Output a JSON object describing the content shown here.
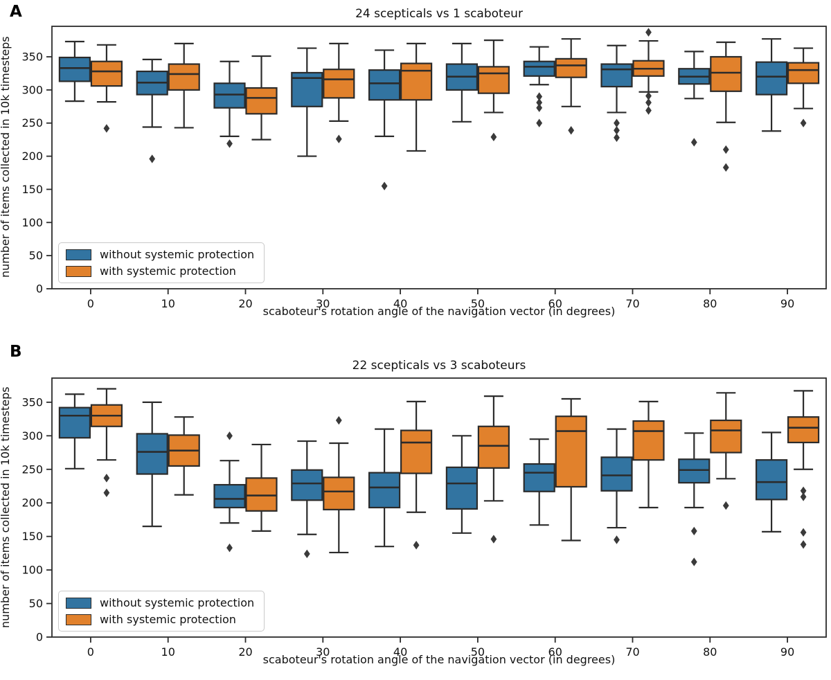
{
  "figure": {
    "panels": [
      {
        "panel_label": "A"
      },
      {
        "panel_label": "B"
      }
    ]
  },
  "colors": {
    "box_blue": "#3274a1",
    "box_orange": "#e1812c",
    "edge": "#2b2b2b",
    "flier": "#3a3a3a",
    "text": "#111111"
  },
  "chart_data": [
    {
      "type": "boxplot",
      "panel": "A",
      "title": "24 scepticals vs 1 scaboteur",
      "xlabel": "scaboteur's rotation angle of the navigation vector (in degrees)",
      "ylabel": "number of items collected in 10k timesteps",
      "categories": [
        0,
        10,
        20,
        30,
        40,
        50,
        60,
        70,
        80,
        90
      ],
      "yticks": [
        0,
        50,
        100,
        150,
        200,
        250,
        300,
        350
      ],
      "ylim": [
        0,
        396
      ],
      "grid": false,
      "legend_position": "lower left",
      "series": [
        {
          "name": "without systemic protection",
          "color": "#3274a1",
          "boxes": [
            {
              "whislo": 283,
              "q1": 313,
              "med": 333,
              "q3": 349,
              "whishi": 373,
              "fliers": []
            },
            {
              "whislo": 244,
              "q1": 293,
              "med": 311,
              "q3": 328,
              "whishi": 346,
              "fliers": [
                196
              ]
            },
            {
              "whislo": 230,
              "q1": 273,
              "med": 293,
              "q3": 310,
              "whishi": 343,
              "fliers": [
                219
              ]
            },
            {
              "whislo": 200,
              "q1": 275,
              "med": 318,
              "q3": 326,
              "whishi": 363,
              "fliers": []
            },
            {
              "whislo": 230,
              "q1": 285,
              "med": 310,
              "q3": 330,
              "whishi": 360,
              "fliers": [
                155
              ]
            },
            {
              "whislo": 252,
              "q1": 300,
              "med": 320,
              "q3": 339,
              "whishi": 370,
              "fliers": []
            },
            {
              "whislo": 308,
              "q1": 321,
              "med": 335,
              "q3": 343,
              "whishi": 365,
              "fliers": [
                290,
                281,
                273,
                250
              ]
            },
            {
              "whislo": 266,
              "q1": 305,
              "med": 331,
              "q3": 339,
              "whishi": 367,
              "fliers": [
                250,
                239,
                228
              ]
            },
            {
              "whislo": 287,
              "q1": 309,
              "med": 320,
              "q3": 332,
              "whishi": 358,
              "fliers": [
                221
              ]
            },
            {
              "whislo": 238,
              "q1": 293,
              "med": 320,
              "q3": 342,
              "whishi": 377,
              "fliers": []
            }
          ]
        },
        {
          "name": "with systemic protection",
          "color": "#e1812c",
          "boxes": [
            {
              "whislo": 282,
              "q1": 306,
              "med": 328,
              "q3": 343,
              "whishi": 368,
              "fliers": [
                242
              ]
            },
            {
              "whislo": 243,
              "q1": 300,
              "med": 324,
              "q3": 339,
              "whishi": 370,
              "fliers": []
            },
            {
              "whislo": 225,
              "q1": 264,
              "med": 288,
              "q3": 303,
              "whishi": 351,
              "fliers": []
            },
            {
              "whislo": 253,
              "q1": 288,
              "med": 316,
              "q3": 331,
              "whishi": 370,
              "fliers": [
                226
              ]
            },
            {
              "whislo": 208,
              "q1": 285,
              "med": 329,
              "q3": 340,
              "whishi": 370,
              "fliers": []
            },
            {
              "whislo": 266,
              "q1": 295,
              "med": 325,
              "q3": 335,
              "whishi": 375,
              "fliers": [
                229
              ]
            },
            {
              "whislo": 275,
              "q1": 319,
              "med": 337,
              "q3": 347,
              "whishi": 377,
              "fliers": [
                239
              ]
            },
            {
              "whislo": 297,
              "q1": 321,
              "med": 332,
              "q3": 344,
              "whishi": 374,
              "fliers": [
                387,
                291,
                281,
                269
              ]
            },
            {
              "whislo": 251,
              "q1": 298,
              "med": 326,
              "q3": 350,
              "whishi": 372,
              "fliers": [
                210,
                183
              ]
            },
            {
              "whislo": 272,
              "q1": 310,
              "med": 330,
              "q3": 341,
              "whishi": 363,
              "fliers": [
                250
              ]
            }
          ]
        }
      ]
    },
    {
      "type": "boxplot",
      "panel": "B",
      "title": "22 scepticals vs 3 scaboteurs",
      "xlabel": "scaboteur's rotation angle of the navigation vector (in degrees)",
      "ylabel": "number of items collected in 10k timesteps",
      "categories": [
        0,
        10,
        20,
        30,
        40,
        50,
        60,
        70,
        80,
        90
      ],
      "yticks": [
        0,
        50,
        100,
        150,
        200,
        250,
        300,
        350
      ],
      "ylim": [
        0,
        386
      ],
      "grid": false,
      "legend_position": "lower left",
      "series": [
        {
          "name": "without systemic protection",
          "color": "#3274a1",
          "boxes": [
            {
              "whislo": 251,
              "q1": 297,
              "med": 330,
              "q3": 342,
              "whishi": 362,
              "fliers": []
            },
            {
              "whislo": 165,
              "q1": 243,
              "med": 276,
              "q3": 303,
              "whishi": 350,
              "fliers": []
            },
            {
              "whislo": 170,
              "q1": 193,
              "med": 206,
              "q3": 227,
              "whishi": 263,
              "fliers": [
                300,
                133
              ]
            },
            {
              "whislo": 153,
              "q1": 204,
              "med": 229,
              "q3": 249,
              "whishi": 292,
              "fliers": [
                124
              ]
            },
            {
              "whislo": 135,
              "q1": 193,
              "med": 223,
              "q3": 245,
              "whishi": 310,
              "fliers": []
            },
            {
              "whislo": 155,
              "q1": 191,
              "med": 229,
              "q3": 253,
              "whishi": 300,
              "fliers": []
            },
            {
              "whislo": 167,
              "q1": 217,
              "med": 245,
              "q3": 258,
              "whishi": 295,
              "fliers": []
            },
            {
              "whislo": 163,
              "q1": 218,
              "med": 241,
              "q3": 268,
              "whishi": 310,
              "fliers": [
                145
              ]
            },
            {
              "whislo": 193,
              "q1": 230,
              "med": 249,
              "q3": 265,
              "whishi": 304,
              "fliers": [
                158,
                112
              ]
            },
            {
              "whislo": 157,
              "q1": 205,
              "med": 231,
              "q3": 264,
              "whishi": 305,
              "fliers": []
            }
          ]
        },
        {
          "name": "with systemic protection",
          "color": "#e1812c",
          "boxes": [
            {
              "whislo": 264,
              "q1": 314,
              "med": 330,
              "q3": 346,
              "whishi": 370,
              "fliers": [
                237,
                215
              ]
            },
            {
              "whislo": 212,
              "q1": 255,
              "med": 278,
              "q3": 301,
              "whishi": 328,
              "fliers": []
            },
            {
              "whislo": 158,
              "q1": 188,
              "med": 211,
              "q3": 237,
              "whishi": 287,
              "fliers": []
            },
            {
              "whislo": 126,
              "q1": 190,
              "med": 217,
              "q3": 238,
              "whishi": 289,
              "fliers": [
                323
              ]
            },
            {
              "whislo": 186,
              "q1": 244,
              "med": 290,
              "q3": 308,
              "whishi": 351,
              "fliers": [
                137
              ]
            },
            {
              "whislo": 203,
              "q1": 252,
              "med": 285,
              "q3": 314,
              "whishi": 359,
              "fliers": [
                146
              ]
            },
            {
              "whislo": 144,
              "q1": 224,
              "med": 307,
              "q3": 329,
              "whishi": 355,
              "fliers": []
            },
            {
              "whislo": 193,
              "q1": 264,
              "med": 307,
              "q3": 322,
              "whishi": 351,
              "fliers": []
            },
            {
              "whislo": 236,
              "q1": 275,
              "med": 308,
              "q3": 323,
              "whishi": 364,
              "fliers": [
                196
              ]
            },
            {
              "whislo": 250,
              "q1": 290,
              "med": 312,
              "q3": 328,
              "whishi": 367,
              "fliers": [
                218,
                209,
                156,
                138
              ]
            }
          ]
        }
      ]
    }
  ]
}
